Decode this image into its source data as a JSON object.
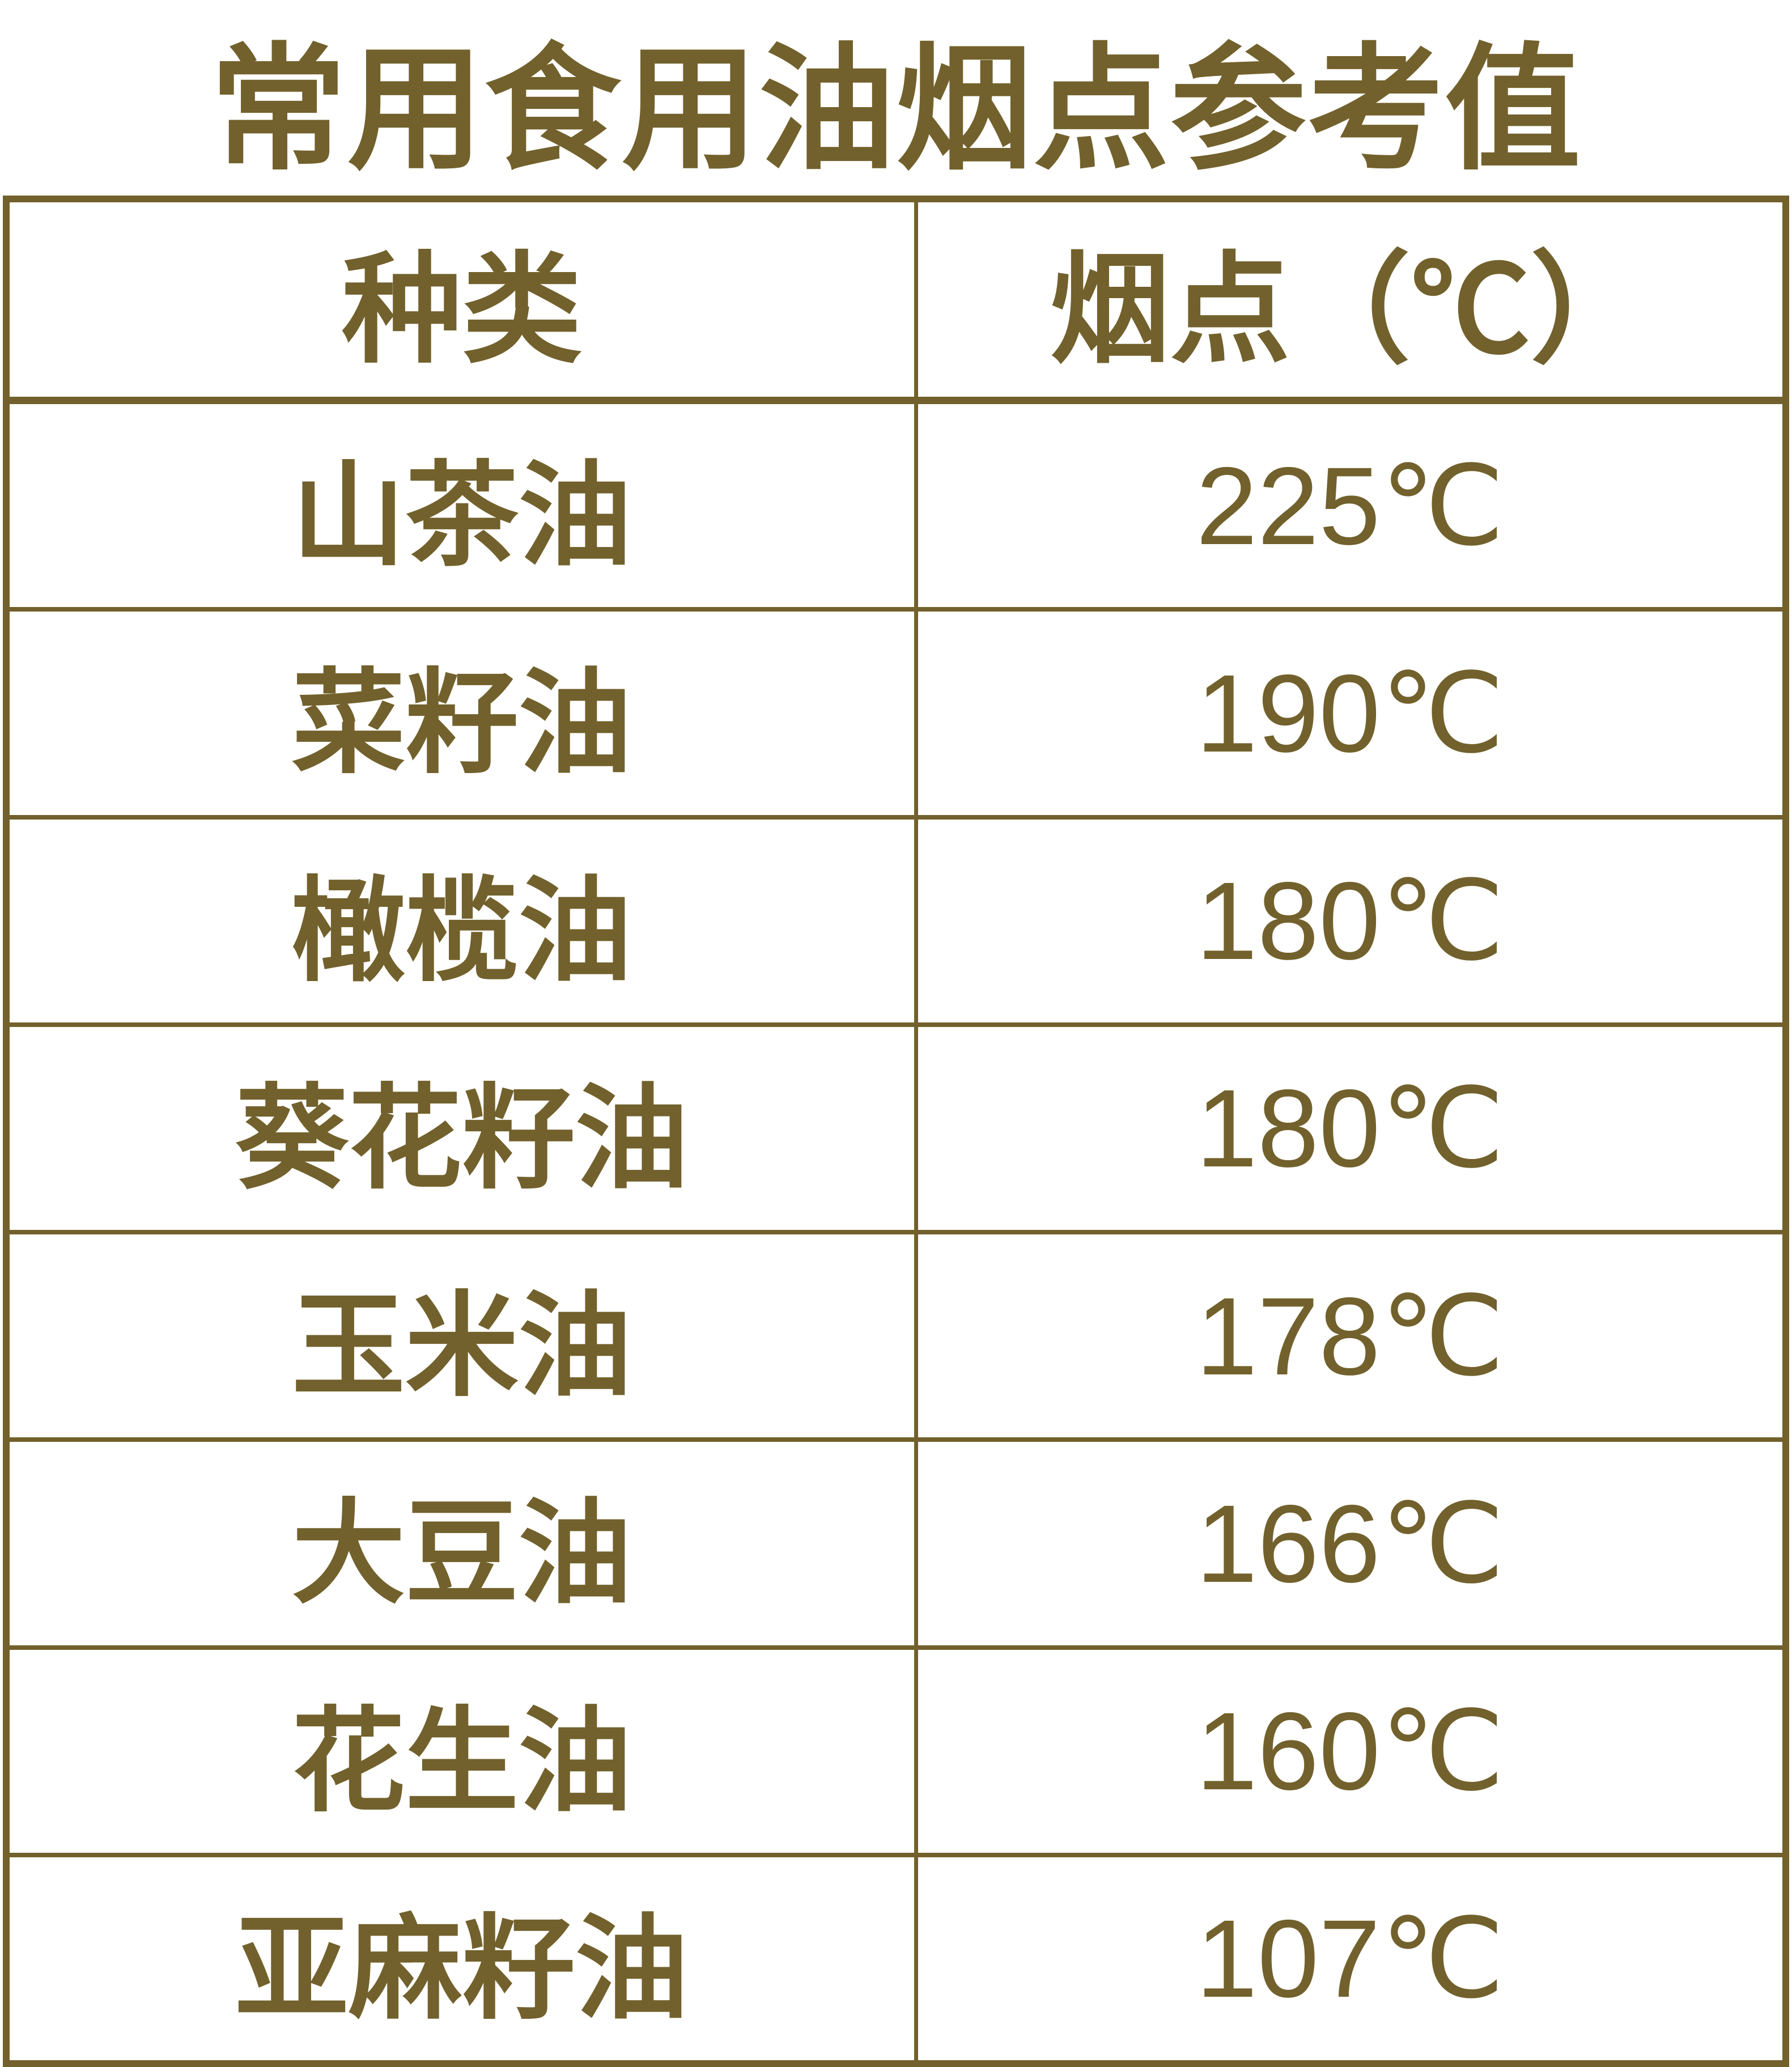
{
  "colors": {
    "accent": "#72612c",
    "background": "#ffffff"
  },
  "title": "常用食用油烟点参考值",
  "table": {
    "headers": [
      {
        "label": "种类"
      },
      {
        "label": "烟点（℃）"
      }
    ],
    "rows": [
      {
        "type": "山茶油",
        "smoke_point": "225℃"
      },
      {
        "type": "菜籽油",
        "smoke_point": "190℃"
      },
      {
        "type": "橄榄油",
        "smoke_point": "180℃"
      },
      {
        "type": "葵花籽油",
        "smoke_point": "180℃"
      },
      {
        "type": "玉米油",
        "smoke_point": "178℃"
      },
      {
        "type": "大豆油",
        "smoke_point": "166℃"
      },
      {
        "type": "花生油",
        "smoke_point": "160℃"
      },
      {
        "type": "亚麻籽油",
        "smoke_point": "107℃"
      }
    ]
  },
  "chart_data": {
    "type": "table",
    "title": "常用食用油烟点参考值",
    "columns": [
      "种类",
      "烟点（℃）"
    ],
    "categories": [
      "山茶油",
      "菜籽油",
      "橄榄油",
      "葵花籽油",
      "玉米油",
      "大豆油",
      "花生油",
      "亚麻籽油"
    ],
    "values": [
      225,
      190,
      180,
      180,
      178,
      166,
      160,
      107
    ],
    "unit": "℃"
  }
}
